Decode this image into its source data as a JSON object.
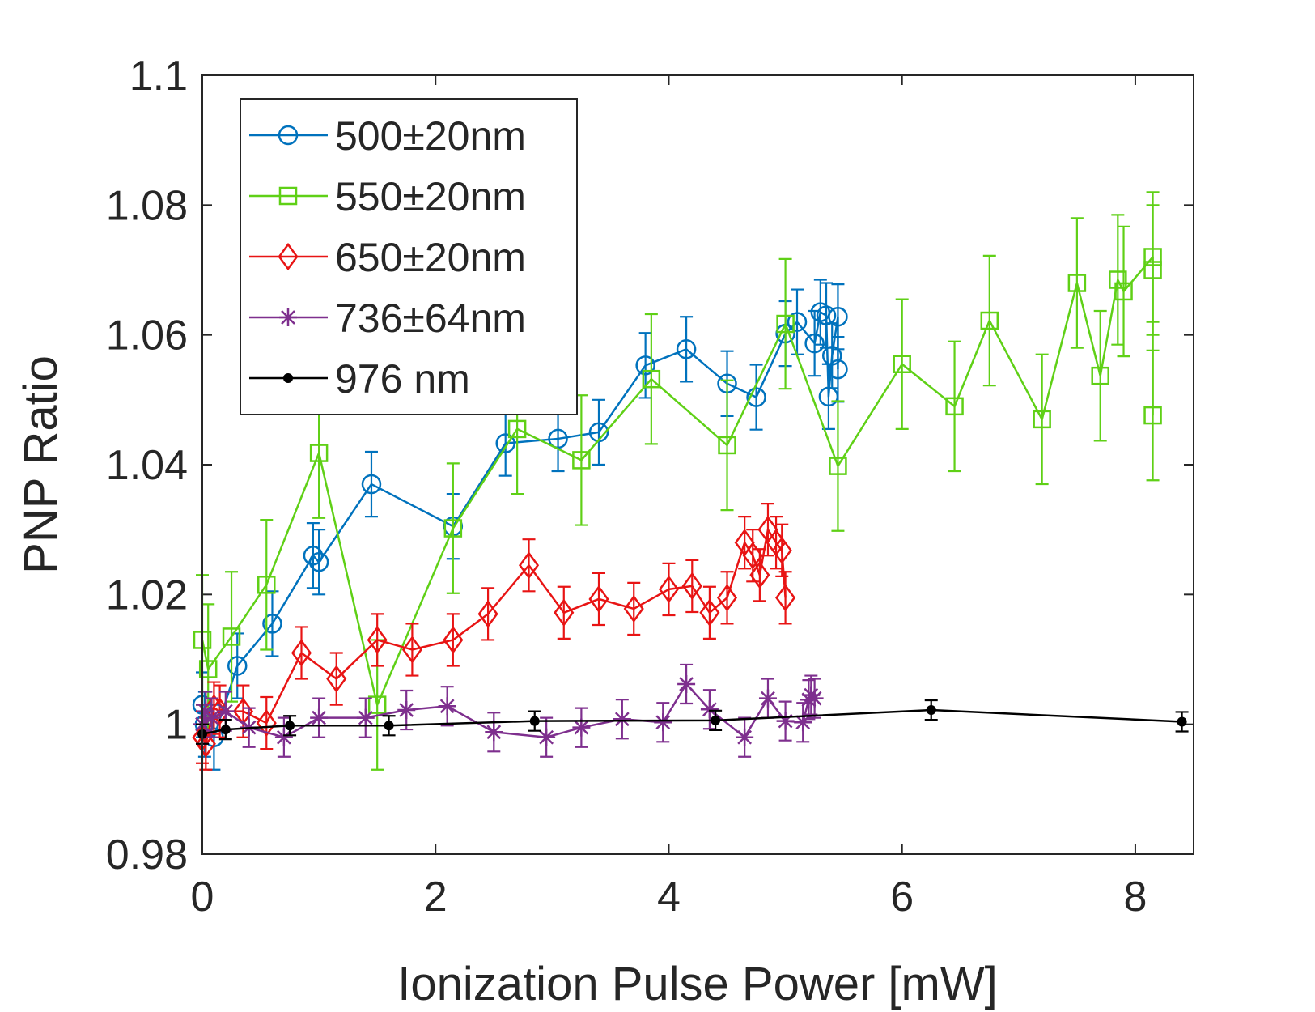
{
  "chart_data": {
    "type": "line",
    "title": "",
    "xlabel": "Ionization Pulse Power [mW]",
    "ylabel": "PNP Ratio",
    "xlim": [
      0,
      8.5
    ],
    "ylim": [
      0.98,
      1.1
    ],
    "xticks": [
      0,
      2,
      4,
      6,
      8
    ],
    "yticks": [
      0.98,
      1,
      1.02,
      1.04,
      1.06,
      1.08,
      1.1
    ],
    "xtick_labels": [
      "0",
      "2",
      "4",
      "6",
      "8"
    ],
    "ytick_labels": [
      "0.98",
      "1",
      "1.02",
      "1.04",
      "1.06",
      "1.08",
      "1.1"
    ],
    "grid": false,
    "legend_position": "top-left",
    "series": [
      {
        "name": "500±20nm",
        "color": "#0072BD",
        "marker": "circle",
        "x": [
          0.0,
          0.02,
          0.1,
          0.3,
          0.6,
          0.95,
          1.0,
          1.45,
          2.15,
          2.6,
          3.05,
          3.4,
          3.8,
          4.15,
          4.5,
          4.75,
          5.0,
          5.1,
          5.25,
          5.3,
          5.35,
          5.37,
          5.4,
          5.45,
          5.45
        ],
        "y": [
          1.003,
          1.0,
          0.998,
          1.009,
          1.0155,
          1.026,
          1.025,
          1.037,
          1.0305,
          1.0433,
          1.044,
          1.045,
          1.0553,
          1.0578,
          1.0525,
          1.0504,
          1.0602,
          1.062,
          1.0587,
          1.0635,
          1.063,
          1.0505,
          1.0568,
          1.0628,
          1.0547
        ],
        "err": [
          0.005,
          0.005,
          0.005,
          0.005,
          0.005,
          0.005,
          0.005,
          0.005,
          0.005,
          0.005,
          0.005,
          0.005,
          0.005,
          0.005,
          0.005,
          0.005,
          0.005,
          0.005,
          0.005,
          0.005,
          0.005,
          0.005,
          0.005,
          0.005,
          0.005
        ]
      },
      {
        "name": "550±20nm",
        "color": "#5FD016",
        "marker": "square",
        "x": [
          0.0,
          0.05,
          0.25,
          0.55,
          1.0,
          1.5,
          2.15,
          2.7,
          3.25,
          3.85,
          4.5,
          5.0,
          5.45,
          6.0,
          6.45,
          6.75,
          7.2,
          7.5,
          7.7,
          7.85,
          7.9,
          8.15,
          8.15,
          8.15
        ],
        "y": [
          1.013,
          1.0085,
          1.0135,
          1.0215,
          1.0418,
          1.003,
          1.0302,
          1.0455,
          1.0407,
          1.0532,
          1.043,
          1.0617,
          1.0398,
          1.0555,
          1.049,
          1.0622,
          1.047,
          1.068,
          1.0537,
          1.0685,
          1.0667,
          1.072,
          1.07,
          1.0476
        ],
        "err": [
          0.01,
          0.01,
          0.01,
          0.01,
          0.01,
          0.01,
          0.01,
          0.01,
          0.01,
          0.01,
          0.01,
          0.01,
          0.01,
          0.01,
          0.01,
          0.01,
          0.01,
          0.01,
          0.01,
          0.01,
          0.01,
          0.01,
          0.01,
          0.01
        ]
      },
      {
        "name": "650±20nm",
        "color": "#E81414",
        "marker": "diamond",
        "x": [
          0.0,
          0.03,
          0.1,
          0.15,
          0.35,
          0.55,
          0.85,
          1.15,
          1.5,
          1.8,
          2.15,
          2.45,
          2.8,
          3.1,
          3.4,
          3.7,
          4.0,
          4.2,
          4.35,
          4.5,
          4.65,
          4.72,
          4.78,
          4.85,
          4.92,
          4.97,
          5.0
        ],
        "y": [
          0.998,
          0.997,
          1.0025,
          1.002,
          1.002,
          1.0002,
          1.011,
          1.007,
          1.013,
          1.0115,
          1.013,
          1.017,
          1.0245,
          1.0172,
          1.0193,
          1.0178,
          1.0208,
          1.0213,
          1.0172,
          1.0195,
          1.028,
          1.026,
          1.023,
          1.03,
          1.028,
          1.0268,
          1.0195
        ],
        "err": [
          0.004,
          0.004,
          0.004,
          0.004,
          0.004,
          0.004,
          0.004,
          0.004,
          0.004,
          0.004,
          0.004,
          0.004,
          0.004,
          0.004,
          0.004,
          0.004,
          0.004,
          0.004,
          0.004,
          0.004,
          0.004,
          0.004,
          0.004,
          0.004,
          0.004,
          0.004,
          0.004
        ]
      },
      {
        "name": "736±64nm",
        "color": "#7E2F8E",
        "marker": "asterisk",
        "x": [
          0.0,
          0.03,
          0.08,
          0.2,
          0.4,
          0.7,
          1.0,
          1.4,
          1.75,
          2.1,
          2.5,
          2.95,
          3.25,
          3.6,
          3.95,
          4.15,
          4.35,
          4.65,
          4.85,
          5.0,
          5.15,
          5.2,
          5.22,
          5.25
        ],
        "y": [
          1.0,
          1.002,
          1.001,
          1.002,
          0.9995,
          0.998,
          1.001,
          1.001,
          1.0022,
          1.0028,
          0.9988,
          0.998,
          0.9995,
          1.0008,
          1.0003,
          1.0062,
          1.0023,
          0.998,
          1.004,
          1.0005,
          1.0003,
          1.0038,
          1.0045,
          1.004
        ],
        "err": [
          0.003,
          0.003,
          0.003,
          0.003,
          0.003,
          0.003,
          0.003,
          0.003,
          0.003,
          0.003,
          0.003,
          0.003,
          0.003,
          0.003,
          0.003,
          0.003,
          0.003,
          0.003,
          0.003,
          0.003,
          0.003,
          0.003,
          0.003,
          0.003
        ]
      },
      {
        "name": "976 nm",
        "color": "#000000",
        "marker": "dot",
        "x": [
          0.0,
          0.2,
          0.75,
          1.6,
          2.85,
          4.4,
          6.25,
          8.4
        ],
        "y": [
          0.9985,
          0.9992,
          0.9998,
          0.9998,
          1.0005,
          1.0006,
          1.0022,
          1.0004
        ],
        "err": [
          0.0015,
          0.0015,
          0.0015,
          0.0015,
          0.0015,
          0.0015,
          0.0015,
          0.0015
        ]
      }
    ]
  }
}
